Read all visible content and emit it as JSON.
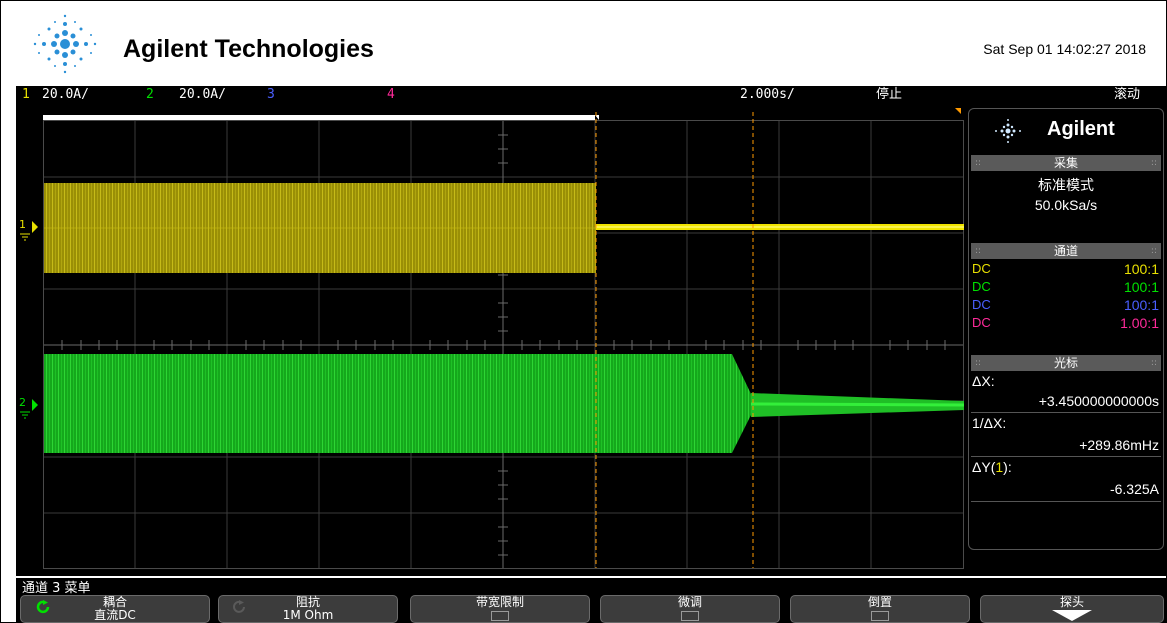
{
  "header": {
    "brand": "Agilent Technologies",
    "datetime": "Sat Sep 01 14:02:27 2018",
    "logo_icon": "agilent-spark-icon"
  },
  "status_bar": {
    "ch1_num": "1",
    "ch1_scale": "20.0A/",
    "ch2_num": "2",
    "ch2_scale": "20.0A/",
    "ch3_num": "3",
    "ch4_num": "4",
    "timebase": "2.000s/",
    "run_state": "停止",
    "mode": "滚动"
  },
  "colors": {
    "ch1": "#e8e000",
    "ch2": "#00e000",
    "ch3": "#4a5fff",
    "ch4": "#ff2a9a",
    "cursor": "#ff9a00",
    "panel_header": "#5a5a5a"
  },
  "channel_markers": {
    "ch1": "1",
    "ch2": "2"
  },
  "right_panel": {
    "brand": "Agilent",
    "acquire": {
      "title": "采集",
      "mode": "标准模式",
      "rate": "50.0kSa/s"
    },
    "channels": {
      "title": "通道",
      "rows": [
        {
          "coupling": "DC",
          "probe": "100:1"
        },
        {
          "coupling": "DC",
          "probe": "100:1"
        },
        {
          "coupling": "DC",
          "probe": "100:1"
        },
        {
          "coupling": "DC",
          "probe": "1.00:1"
        }
      ]
    },
    "cursors": {
      "title": "光标",
      "dx_label": "ΔX:",
      "dx_value": "+3.450000000000s",
      "inv_label": "1/ΔX:",
      "inv_value": "+289.86mHz",
      "dy_label_pre": "ΔY(",
      "dy_label_ch": "1",
      "dy_label_post": "):",
      "dy_value": "-6.325A"
    }
  },
  "menu": {
    "title": "通道 3 菜单",
    "softkeys": [
      {
        "label": "耦合",
        "value": "直流DC",
        "icon": "rotate-arrow-icon"
      },
      {
        "label": "阻抗",
        "value": "1M Ohm",
        "icon": "rotate-arrow-icon"
      },
      {
        "label": "带宽限制",
        "value": ""
      },
      {
        "label": "微调",
        "value": ""
      },
      {
        "label": "倒置",
        "value": ""
      },
      {
        "label": "探头",
        "value": "",
        "icon": "down-arrow-icon"
      }
    ]
  }
}
